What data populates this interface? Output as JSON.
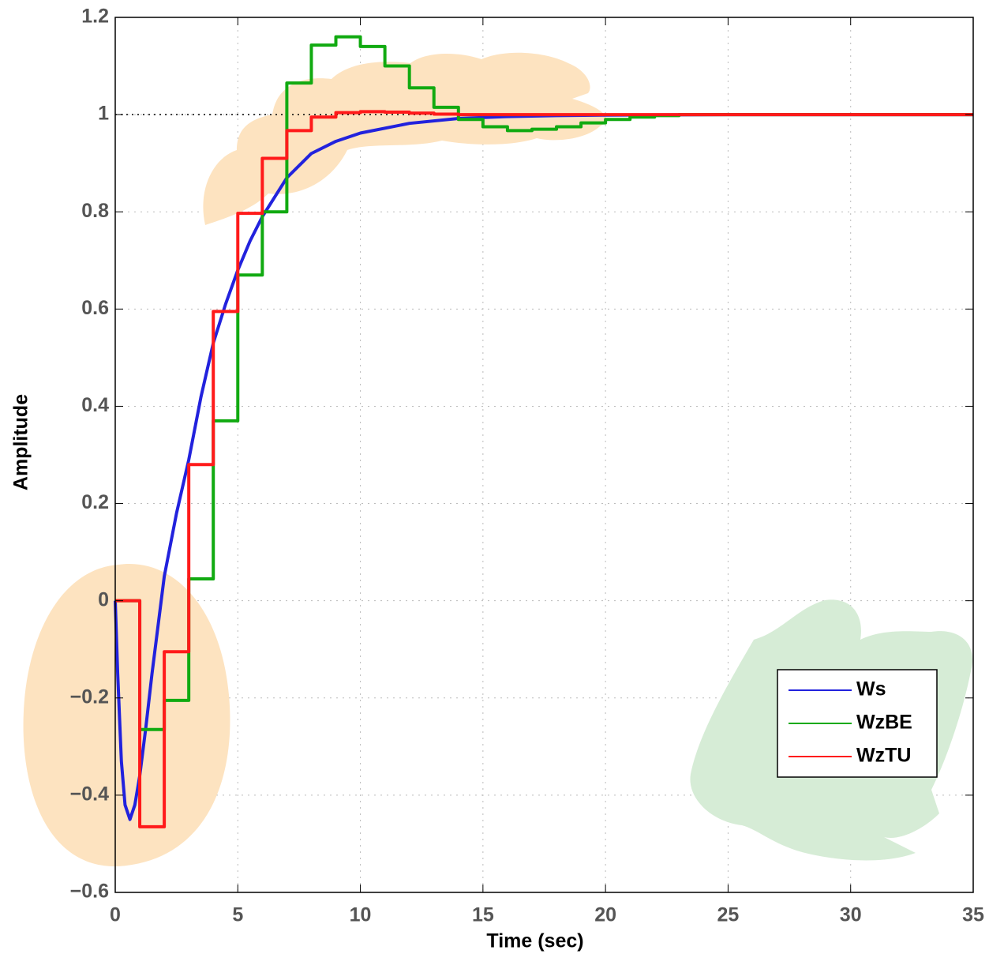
{
  "chart_data": {
    "type": "line",
    "xlabel": "Time (sec)",
    "ylabel": "Amplitude",
    "xlim": [
      0,
      35
    ],
    "xticks": [
      0,
      5,
      10,
      15,
      20,
      25,
      30,
      35
    ],
    "ylim": [
      -0.6,
      1.2
    ],
    "yticks": [
      {
        "value": -0.6,
        "label": "−0.6"
      },
      {
        "value": -0.4,
        "label": "−0.4"
      },
      {
        "value": -0.2,
        "label": "−0.2"
      },
      0,
      0.2,
      0.4,
      0.6,
      0.8,
      1,
      1.2
    ],
    "grid": true,
    "hline": 1,
    "legend": "lower right",
    "series": [
      {
        "name": "Ws",
        "color": "#2222dd",
        "step": false,
        "x": [
          0,
          0.1,
          0.25,
          0.4,
          0.6,
          0.8,
          1,
          1.25,
          1.5,
          1.75,
          2,
          2.5,
          3,
          3.5,
          4,
          4.5,
          5,
          5.5,
          6,
          7,
          8,
          9,
          10,
          12,
          14,
          16,
          18,
          20,
          25,
          30,
          35
        ],
        "values": [
          0,
          -0.15,
          -0.33,
          -0.42,
          -0.45,
          -0.42,
          -0.36,
          -0.26,
          -0.15,
          -0.05,
          0.05,
          0.18,
          0.29,
          0.42,
          0.53,
          0.61,
          0.68,
          0.74,
          0.79,
          0.87,
          0.92,
          0.945,
          0.962,
          0.982,
          0.992,
          0.996,
          0.998,
          0.999,
          1,
          1,
          1
        ]
      },
      {
        "name": "WzBE",
        "color": "#11aa11",
        "step": true,
        "x": [
          0,
          1,
          2,
          3,
          4,
          5,
          6,
          7,
          8,
          9,
          10,
          11,
          12,
          13,
          14,
          15,
          16,
          17,
          18,
          19,
          20,
          21,
          22,
          23,
          24,
          25,
          26,
          27,
          28,
          29,
          30,
          31,
          32,
          33,
          34,
          35
        ],
        "values": [
          0,
          -0.265,
          -0.205,
          0.045,
          0.37,
          0.67,
          0.8,
          1.065,
          1.143,
          1.16,
          1.14,
          1.1,
          1.055,
          1.015,
          0.99,
          0.975,
          0.967,
          0.97,
          0.975,
          0.983,
          0.99,
          0.995,
          0.998,
          1,
          1,
          1,
          1,
          1,
          1,
          1,
          1,
          1,
          1,
          1,
          1,
          1
        ]
      },
      {
        "name": "WzTU",
        "color": "#ff1a1a",
        "step": true,
        "x": [
          0,
          1,
          2,
          3,
          4,
          5,
          6,
          7,
          8,
          9,
          10,
          11,
          12,
          13,
          14,
          15,
          16,
          17,
          18,
          19,
          20,
          21,
          22,
          23,
          24,
          25,
          26,
          27,
          28,
          29,
          30,
          31,
          32,
          33,
          34,
          35
        ],
        "values": [
          0,
          -0.465,
          -0.105,
          0.28,
          0.595,
          0.797,
          0.91,
          0.967,
          0.995,
          1.004,
          1.006,
          1.005,
          1.003,
          1.001,
          1,
          1,
          1,
          1,
          1,
          1,
          1,
          1,
          1,
          1,
          1,
          1,
          1,
          1,
          1,
          1,
          1,
          1,
          1,
          1,
          1,
          1
        ]
      }
    ]
  }
}
